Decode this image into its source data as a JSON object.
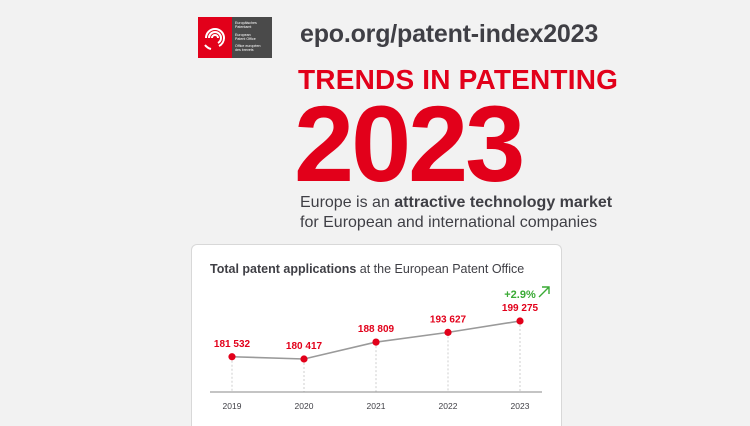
{
  "header": {
    "logo_lines": [
      "Europäisches",
      "Patentamt",
      "European",
      "Patent Office",
      "Office européen",
      "des brevets"
    ],
    "url": "epo.org/patent-index2023",
    "headline": "TRENDS IN PATENTING",
    "year": "2023",
    "tagline_pre": "Europe is an ",
    "tagline_bold": "attractive technology market",
    "tagline_line2": "for European and international companies"
  },
  "colors": {
    "accent": "#e2001a",
    "growth": "#3aaa35",
    "line": "#9a9a9a",
    "text": "#3f3f45"
  },
  "chart_data": {
    "type": "line",
    "title_bold": "Total patent applications",
    "title_rest": " at the European Patent Office",
    "x": [
      "2019",
      "2020",
      "2021",
      "2022",
      "2023"
    ],
    "values": [
      181532,
      180417,
      188809,
      193627,
      199275
    ],
    "value_labels": [
      "181 532",
      "180 417",
      "188 809",
      "193 627",
      "199 275"
    ],
    "growth_label": "+2.9%",
    "growth_icon": "arrow-up-right-icon",
    "grid": false,
    "legend": "none"
  }
}
